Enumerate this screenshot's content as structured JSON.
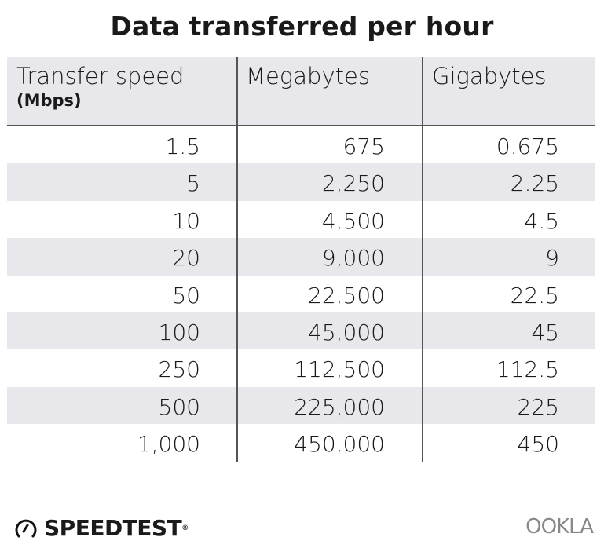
{
  "chart_data": {
    "type": "table",
    "title": "Data transferred per hour",
    "columns": [
      {
        "label": "Transfer speed",
        "sublabel": "(Mbps)"
      },
      {
        "label": "Megabytes"
      },
      {
        "label": "Gigabytes"
      }
    ],
    "rows": [
      [
        "1.5",
        "675",
        "0.675"
      ],
      [
        "5",
        "2,250",
        "2.25"
      ],
      [
        "10",
        "4,500",
        "4.5"
      ],
      [
        "20",
        "9,000",
        "9"
      ],
      [
        "50",
        "22,500",
        "22.5"
      ],
      [
        "100",
        "45,000",
        "45"
      ],
      [
        "250",
        "112,500",
        "112.5"
      ],
      [
        "500",
        "225,000",
        "225"
      ],
      [
        "1,000",
        "450,000",
        "450"
      ]
    ],
    "colors": {
      "header_bg": "#e8e8ec",
      "stripe": "#e8e8ec",
      "rule": "#555555"
    }
  },
  "footer": {
    "brand": "SPEEDTEST",
    "partner": "OOKLA"
  }
}
